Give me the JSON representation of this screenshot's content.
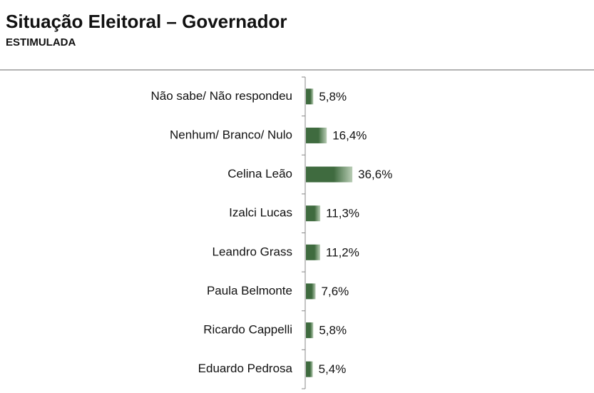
{
  "chart_data": {
    "type": "bar",
    "orientation": "horizontal",
    "title": "Situação Eleitoral – Governador",
    "subtitle": "ESTIMULADA",
    "categories": [
      "Não sabe/ Não respondeu",
      "Nenhum/ Branco/ Nulo",
      "Celina Leão",
      "Izalci Lucas",
      "Leandro Grass",
      "Paula Belmonte",
      "Ricardo Cappelli",
      "Eduardo Pedrosa"
    ],
    "values": [
      5.8,
      16.4,
      36.6,
      11.3,
      11.2,
      7.6,
      5.8,
      5.4
    ],
    "value_labels": [
      "5,8%",
      "16,4%",
      "36,6%",
      "11,3%",
      "11,2%",
      "7,6%",
      "5,8%",
      "5,4%"
    ],
    "color": "#3f6b3f"
  }
}
